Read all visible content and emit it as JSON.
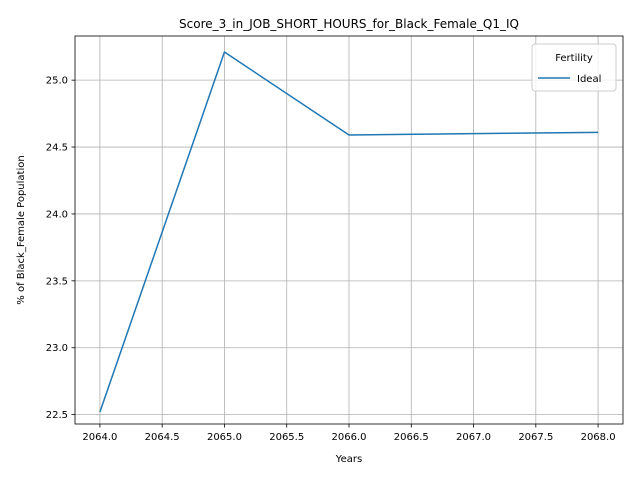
{
  "chart_data": {
    "type": "line",
    "title": "Score_3_in_JOB_SHORT_HOURS_for_Black_Female_Q1_IQ",
    "xlabel": "Years",
    "ylabel": "% of Black_Female Population",
    "x": [
      2064,
      2065,
      2066,
      2067,
      2068
    ],
    "series": [
      {
        "name": "Ideal",
        "color": "#1f77b4",
        "values": [
          22.52,
          25.21,
          24.59,
          24.6,
          24.61
        ]
      }
    ],
    "xlim": [
      2063.8,
      2068.2
    ],
    "ylim": [
      22.43,
      25.33
    ],
    "xticks": [
      "2064.0",
      "2064.5",
      "2065.0",
      "2065.5",
      "2066.0",
      "2066.5",
      "2067.0",
      "2067.5",
      "2068.0"
    ],
    "yticks": [
      "22.5",
      "23.0",
      "23.5",
      "24.0",
      "24.5",
      "25.0"
    ],
    "grid": true,
    "legend": {
      "title": "Fertility",
      "placement": "top-right"
    }
  }
}
